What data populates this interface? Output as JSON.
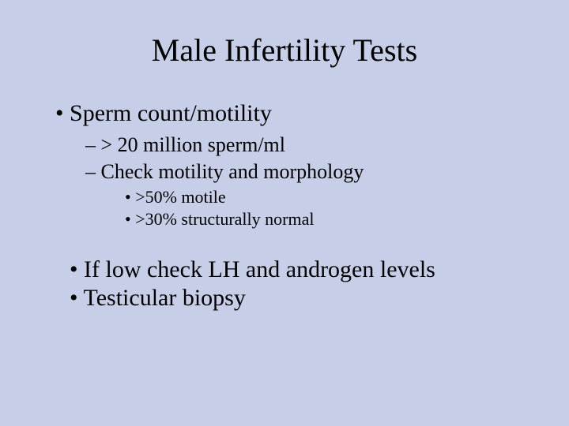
{
  "background_color": "#c7cfe8",
  "text_color": "#000000",
  "font_family": "Times New Roman",
  "title": {
    "text": "Male Infertility Tests",
    "fontsize": 40
  },
  "bullets": {
    "level1_fontsize": 30,
    "level2_fontsize": 26,
    "level3_fontsize": 22,
    "level1_bullet": "•",
    "level2_bullet": "–",
    "level3_bullet": "•",
    "item1": "Sperm count/motility",
    "item1_sub1": "> 20 million sperm/ml",
    "item1_sub2": "Check motility and morphology",
    "item1_sub2_sub1": ">50% motile",
    "item1_sub2_sub2": ">30% structurally normal",
    "bottom1": "If low check LH and androgen levels",
    "bottom2": "Testicular biopsy"
  }
}
